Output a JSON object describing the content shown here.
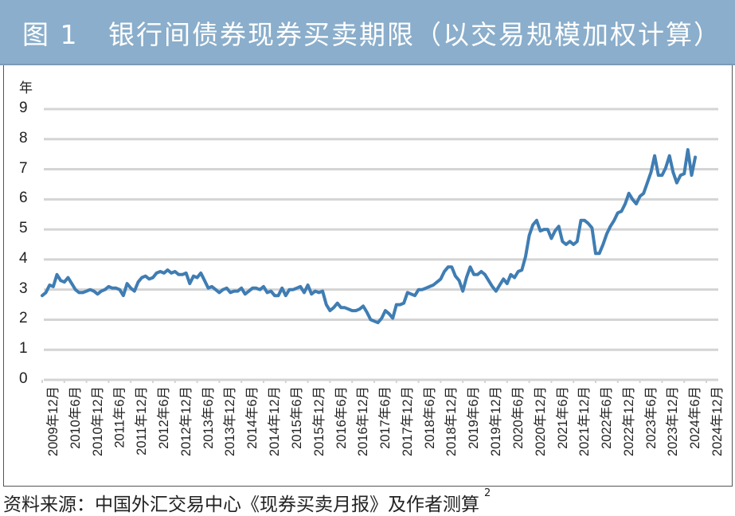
{
  "header": {
    "title": "图 1   银行间债券现券买卖期限（以交易规模加权计算）"
  },
  "footer": {
    "source": "资料来源：中国外汇交易中心《现券买卖月报》及作者测算",
    "footnote_mark": "2"
  },
  "colors": {
    "title_bar": "#8aaecb",
    "line": "#3f7db3",
    "grid": "#d4d4d4"
  },
  "chart_data": {
    "type": "line",
    "title": "银行间债券现券买卖期限（以交易规模加权计算）",
    "xlabel": "",
    "ylabel": "年",
    "ylim": [
      0,
      9
    ],
    "yticks": [
      0,
      1,
      2,
      3,
      4,
      5,
      6,
      7,
      8,
      9
    ],
    "grid": true,
    "legend": null,
    "x_tick_labels": [
      "2009年12月",
      "2010年6月",
      "2010年12月",
      "2011年6月",
      "2011年12月",
      "2012年6月",
      "2012年12月",
      "2013年6月",
      "2013年12月",
      "2014年6月",
      "2014年12月",
      "2015年6月",
      "2015年12月",
      "2016年6月",
      "2016年12月",
      "2017年6月",
      "2017年12月",
      "2018年6月",
      "2018年12月",
      "2019年6月",
      "2019年12月",
      "2020年6月",
      "2020年12月",
      "2021年6月",
      "2021年12月",
      "2022年6月",
      "2022年12月",
      "2023年6月",
      "2023年12月",
      "2024年6月",
      "2024年12月"
    ],
    "x_start": "2009-12",
    "frequency": "monthly",
    "series": [
      {
        "name": "银行间债券现券买卖期限（年）",
        "values": [
          2.8,
          2.9,
          3.15,
          3.1,
          3.5,
          3.3,
          3.25,
          3.4,
          3.2,
          3.0,
          2.9,
          2.9,
          2.95,
          3.0,
          2.95,
          2.85,
          2.95,
          3.0,
          3.1,
          3.05,
          3.05,
          3.0,
          2.8,
          3.2,
          3.05,
          2.95,
          3.25,
          3.4,
          3.45,
          3.35,
          3.4,
          3.55,
          3.6,
          3.55,
          3.65,
          3.55,
          3.6,
          3.5,
          3.5,
          3.55,
          3.2,
          3.45,
          3.4,
          3.55,
          3.3,
          3.05,
          3.1,
          3.0,
          2.9,
          3.0,
          3.05,
          2.9,
          2.95,
          2.95,
          3.05,
          2.85,
          2.95,
          3.05,
          3.05,
          3.0,
          3.1,
          2.9,
          2.95,
          2.8,
          2.8,
          3.05,
          2.8,
          3.0,
          3.0,
          3.05,
          3.1,
          2.9,
          3.15,
          2.85,
          2.95,
          2.9,
          2.95,
          2.5,
          2.3,
          2.4,
          2.55,
          2.4,
          2.4,
          2.35,
          2.3,
          2.3,
          2.35,
          2.45,
          2.25,
          2.0,
          1.95,
          1.9,
          2.05,
          2.3,
          2.2,
          2.05,
          2.5,
          2.5,
          2.55,
          2.9,
          2.85,
          2.8,
          3.0,
          3.0,
          3.05,
          3.1,
          3.15,
          3.25,
          3.35,
          3.6,
          3.75,
          3.75,
          3.45,
          3.3,
          2.95,
          3.4,
          3.75,
          3.5,
          3.5,
          3.6,
          3.5,
          3.3,
          3.1,
          2.95,
          3.15,
          3.35,
          3.2,
          3.5,
          3.4,
          3.6,
          3.65,
          4.1,
          4.8,
          5.15,
          5.3,
          4.95,
          5.0,
          5.0,
          4.7,
          4.95,
          5.1,
          4.6,
          4.5,
          4.6,
          4.5,
          4.6,
          5.3,
          5.3,
          5.2,
          5.05,
          4.2,
          4.2,
          4.5,
          4.85,
          5.1,
          5.3,
          5.55,
          5.6,
          5.85,
          6.2,
          6.0,
          5.85,
          6.1,
          6.2,
          6.55,
          6.9,
          7.45,
          6.8,
          6.8,
          7.05,
          7.45,
          6.9,
          6.55,
          6.8,
          6.85,
          7.65,
          6.8,
          7.4
        ]
      }
    ]
  }
}
